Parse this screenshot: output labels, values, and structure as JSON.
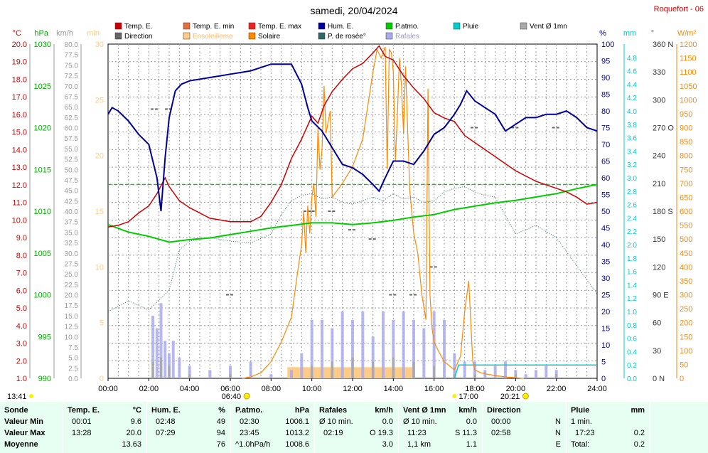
{
  "title": "samedi, 20/04/2024",
  "station": "Roquefort - 06",
  "legend": [
    {
      "label": "Temp. E.",
      "color": "#cc0000"
    },
    {
      "label": "Temp. E. min",
      "color": "#e07040"
    },
    {
      "label": "Temp. E. max",
      "color": "#ee2020"
    },
    {
      "label": "Hum. E.",
      "color": "#000099"
    },
    {
      "label": "P.atmo.",
      "color": "#00cc00"
    },
    {
      "label": "Pluie",
      "color": "#00cccc"
    },
    {
      "label": "Vent Ø 1mn",
      "color": "#aaaaaa"
    },
    {
      "label": "Direction",
      "color": "#666666"
    },
    {
      "label": "Ensoleilleme",
      "color": "#ffcc88"
    },
    {
      "label": "Solaire",
      "color": "#ff8800"
    },
    {
      "label": "P. de rosée°",
      "color": "#336666"
    },
    {
      "label": "Rafales",
      "color": "#aaaaee"
    }
  ],
  "axes": {
    "temp": {
      "unit": "°C",
      "ticks": [
        "20.0",
        "19.0",
        "18.0",
        "17.0",
        "16.0",
        "15.0",
        "14.0",
        "13.0",
        "12.0",
        "11.0",
        "10.0",
        "9.0",
        "8.0",
        "7.0",
        "6.0",
        "5.0",
        "4.0",
        "3.0",
        "2.0",
        "1.0"
      ],
      "color": "#cc0000"
    },
    "press": {
      "unit": "hPa",
      "ticks": [
        "1030",
        "1025",
        "1020",
        "1015",
        "1010",
        "1005",
        "1000",
        "995",
        "990"
      ],
      "color": "#00aa00"
    },
    "wind": {
      "unit": "km/h",
      "ticks": [
        "80.0",
        "77.5",
        "75.0",
        "72.5",
        "70.0",
        "67.5",
        "65.0",
        "62.5",
        "60.0",
        "57.5",
        "55.0",
        "52.5",
        "50.0",
        "47.5",
        "45.0",
        "42.5",
        "40.0",
        "37.5",
        "35.0",
        "32.5",
        "30.0",
        "27.5",
        "25.0",
        "22.5",
        "20.0",
        "17.5",
        "15.0",
        "12.5",
        "10.0",
        "7.5",
        "5.0",
        "2.5",
        "0.0"
      ],
      "color": "#999999"
    },
    "sun": {
      "unit": "min",
      "ticks": [
        "30",
        "25",
        "20",
        "15",
        "10",
        "5",
        "0"
      ],
      "color": "#ffcc88"
    },
    "hum": {
      "unit": "%",
      "ticks": [
        "100",
        "95",
        "90",
        "85",
        "80",
        "75",
        "70",
        "65",
        "60",
        "55",
        "50",
        "45",
        "40",
        "35",
        "30",
        "25",
        "20",
        "15",
        "10",
        "5",
        "0"
      ],
      "color": "#000099"
    },
    "rain": {
      "unit": "mm",
      "ticks": [
        "4.8",
        "4.6",
        "4.4",
        "4.2",
        "4.0",
        "3.8",
        "3.6",
        "3.4",
        "3.2",
        "3.0",
        "2.8",
        "2.6",
        "2.4",
        "2.2",
        "2.0",
        "1.8",
        "1.6",
        "1.4",
        "1.2",
        "1.0",
        "0.8",
        "0.6",
        "0.4",
        "0.2",
        "0.0"
      ],
      "color": "#00cccc"
    },
    "dir": {
      "unit": "°",
      "ticks": [
        "360 N",
        "330",
        "300",
        "270 O",
        "240",
        "210",
        "180 S",
        "150",
        "120",
        "90 E",
        "60",
        "30",
        "0 N"
      ],
      "color": "#666666"
    },
    "solar": {
      "unit": "W/m²",
      "ticks": [
        "1200",
        "1150",
        "1100",
        "1050",
        "1000",
        "950",
        "900",
        "850",
        "800",
        "750",
        "700",
        "650",
        "600",
        "550",
        "500",
        "450",
        "400",
        "350",
        "300",
        "250",
        "200",
        "150",
        "100",
        "50",
        "0"
      ],
      "color": "#ff8800"
    }
  },
  "x_ticks": [
    "00:00",
    "02:00",
    "04:00",
    "06:00",
    "08:00",
    "10:00",
    "12:00",
    "14:00",
    "16:00",
    "18:00",
    "20:00",
    "22:00",
    "24:00"
  ],
  "sun_events": {
    "moon_rise": "13:41",
    "sunrise": "06:40",
    "sunset": "20:21",
    "moon_set": "17:00"
  },
  "chart_data": {
    "type": "line",
    "x_unit": "hour",
    "xlim": [
      0,
      24
    ],
    "series": [
      {
        "name": "Temp. E.",
        "axis": "temp",
        "ylim": [
          1,
          20
        ],
        "x": [
          0,
          0.5,
          1,
          1.5,
          2,
          2.4,
          2.8,
          3,
          3.5,
          4,
          5,
          6,
          7,
          7.5,
          8,
          8.5,
          9,
          9.5,
          10,
          10.3,
          10.6,
          11,
          11.5,
          12,
          12.5,
          13,
          13.3,
          13.6,
          14,
          14.5,
          15,
          15.5,
          16,
          16.5,
          17,
          17.5,
          18,
          18.5,
          19,
          19.5,
          20,
          20.5,
          21,
          21.5,
          22,
          22.5,
          23,
          23.5,
          24
        ],
        "y": [
          9.6,
          9.7,
          9.9,
          10.4,
          10.8,
          11.5,
          12.4,
          11.9,
          11.1,
          10.7,
          10.1,
          9.9,
          9.9,
          10.2,
          11.0,
          12.0,
          13.5,
          14.6,
          15.9,
          15.5,
          16.5,
          17.3,
          18.0,
          18.6,
          18.9,
          19.5,
          19.9,
          19.3,
          19.1,
          18.2,
          17.5,
          16.9,
          16.1,
          15.8,
          15.6,
          14.8,
          14.4,
          14.0,
          13.6,
          13.2,
          12.8,
          12.5,
          12.2,
          12.0,
          11.8,
          11.6,
          11.3,
          10.9,
          11.0
        ]
      },
      {
        "name": "Hum. E.",
        "axis": "hum",
        "ylim": [
          0,
          100
        ],
        "x": [
          0,
          0.2,
          0.5,
          1,
          1.5,
          2,
          2.4,
          2.6,
          2.8,
          3,
          3.3,
          3.6,
          4,
          5,
          6,
          7,
          7.5,
          8,
          8.5,
          9,
          9.5,
          9.8,
          10,
          10.5,
          11,
          11.5,
          12,
          12.5,
          13,
          13.3,
          13.6,
          14,
          14.5,
          15,
          15.5,
          16,
          16.5,
          17,
          17.3,
          17.6,
          18,
          18.5,
          19,
          19.5,
          20,
          20.5,
          21,
          21.5,
          22,
          22.5,
          23,
          23.5,
          24
        ],
        "y": [
          79,
          81,
          80,
          77,
          73,
          70,
          60,
          50,
          66,
          78,
          86,
          88,
          89,
          90,
          91,
          92,
          93,
          94,
          94,
          94,
          88,
          81,
          77,
          74,
          69,
          64,
          63,
          61,
          58,
          56,
          60,
          65,
          65,
          64,
          68,
          73,
          75,
          79,
          82,
          86,
          83,
          81,
          79,
          74,
          76,
          78,
          78,
          79,
          79,
          80,
          78,
          75,
          74
        ]
      },
      {
        "name": "P.atmo.",
        "axis": "press",
        "ylim": [
          990,
          1030
        ],
        "x": [
          0,
          1,
          2,
          3,
          4,
          5,
          6,
          7,
          8,
          9,
          10,
          11,
          12,
          13,
          14,
          15,
          16,
          17,
          18,
          19,
          20,
          21,
          22,
          23,
          24
        ],
        "y": [
          1008.4,
          1007.5,
          1007.0,
          1006.3,
          1006.6,
          1006.8,
          1007.2,
          1007.6,
          1008.0,
          1008.3,
          1008.6,
          1008.6,
          1008.4,
          1008.6,
          1008.9,
          1009.3,
          1009.6,
          1010.2,
          1010.6,
          1011.0,
          1011.3,
          1011.7,
          1012.1,
          1012.7,
          1013.2
        ]
      },
      {
        "name": "P. de rosée°",
        "axis": "temp",
        "ylim": [
          1,
          20
        ],
        "x": [
          0,
          1,
          2,
          3,
          3.5,
          4,
          5,
          6,
          7,
          8,
          8.5,
          9,
          9.5,
          10,
          10.5,
          11,
          11.5,
          12,
          12.5,
          13,
          13.5,
          14,
          14.5,
          15,
          15.5,
          16,
          16.5,
          17,
          17.5,
          18,
          18.5,
          19,
          20,
          21,
          22,
          23,
          24
        ],
        "y": [
          4.8,
          5.4,
          4.9,
          6.0,
          8.3,
          8.8,
          9.0,
          8.8,
          8.7,
          9.2,
          10.3,
          11.1,
          11.4,
          11.5,
          11.2,
          11.3,
          11.0,
          10.9,
          11.1,
          11.3,
          11.1,
          11.5,
          11.2,
          11.3,
          11.0,
          11.1,
          11.6,
          11.8,
          11.9,
          11.6,
          11.4,
          11.3,
          9.2,
          9.7,
          9.0,
          7.4,
          5.8
        ]
      },
      {
        "name": "Solaire",
        "axis": "solar",
        "ylim": [
          0,
          1200
        ],
        "x": [
          6.6,
          7,
          7.5,
          8,
          8.5,
          9,
          9.3,
          9.5,
          9.6,
          9.7,
          9.8,
          9.9,
          10,
          10.1,
          10.2,
          10.3,
          10.4,
          10.5,
          10.6,
          10.7,
          10.8,
          10.9,
          11,
          11.5,
          12,
          12.5,
          13,
          13.2,
          13.4,
          13.6,
          13.7,
          13.8,
          13.9,
          14,
          14.1,
          14.2,
          14.3,
          14.4,
          14.5,
          14.6,
          14.8,
          15,
          15.2,
          15.4,
          15.6,
          15.7,
          15.8,
          15.9,
          16,
          16.2,
          16.5,
          17,
          17.3,
          17.5,
          17.7,
          17.8,
          17.9,
          18,
          18.3,
          18.6,
          19,
          19.5,
          20,
          20.4
        ],
        "y": [
          0,
          5,
          20,
          60,
          130,
          220,
          380,
          480,
          600,
          450,
          620,
          520,
          650,
          700,
          580,
          900,
          750,
          820,
          1050,
          880,
          920,
          960,
          650,
          700,
          760,
          860,
          1100,
          1180,
          1150,
          1190,
          750,
          1180,
          1170,
          1100,
          780,
          950,
          1150,
          1050,
          880,
          1120,
          680,
          520,
          450,
          300,
          210,
          1040,
          300,
          180,
          130,
          100,
          60,
          30,
          80,
          240,
          350,
          200,
          60,
          30,
          20,
          15,
          10,
          5,
          2,
          0
        ]
      },
      {
        "name": "Rafales",
        "axis": "wind",
        "ylim": [
          0,
          80
        ],
        "x": [
          2.2,
          2.4,
          2.6,
          2.8,
          3,
          3.2,
          3.5,
          4,
          5,
          6,
          7,
          8,
          9,
          9.5,
          10,
          10.5,
          11,
          11.5,
          12,
          12.5,
          13,
          13.5,
          14,
          14.5,
          15,
          15.5,
          16,
          16.5,
          17,
          17.5,
          18,
          18.5,
          19,
          19.5,
          20,
          20.5,
          21,
          21.5,
          22
        ],
        "y": [
          15,
          12,
          18,
          9,
          6,
          9,
          5,
          3,
          2,
          3,
          4,
          1,
          2,
          6,
          14,
          14,
          12,
          16,
          14,
          16,
          10,
          16,
          14,
          16,
          14,
          12,
          16,
          14,
          6,
          4,
          4,
          2,
          3,
          4,
          2,
          1,
          2,
          3,
          2
        ]
      },
      {
        "name": "Vent Ø 1mn",
        "axis": "wind",
        "ylim": [
          0,
          80
        ],
        "x": [
          2.2,
          2.6,
          3,
          4,
          6,
          8,
          10,
          11,
          12,
          13,
          14,
          15,
          16,
          17,
          18,
          20,
          22
        ],
        "y": [
          4,
          5,
          3,
          1,
          1,
          0,
          3,
          4,
          5,
          4,
          5,
          4,
          3,
          1,
          1,
          1,
          1
        ]
      },
      {
        "name": "Direction",
        "axis": "dir",
        "ylim": [
          0,
          360
        ],
        "x": [
          2.3,
          3,
          6,
          9.8,
          10,
          11,
          12,
          13,
          14,
          15,
          16,
          18,
          20,
          22
        ],
        "y": [
          290,
          290,
          90,
          180,
          180,
          180,
          160,
          150,
          90,
          90,
          120,
          270,
          270,
          270
        ]
      },
      {
        "name": "Pluie",
        "axis": "rain",
        "ylim": [
          0,
          5
        ],
        "x": [
          17,
          17.2,
          17.5,
          24
        ],
        "y": [
          0,
          0.2,
          0.2,
          0.2
        ]
      },
      {
        "name": "Ensoleilleme",
        "axis": "sun",
        "ylim": [
          0,
          30
        ],
        "x": [
          8.8,
          9,
          9.5,
          10,
          10.5,
          11,
          11.5,
          12,
          12.5,
          13,
          13.5,
          14,
          14.5
        ],
        "y": [
          1,
          1,
          1,
          1,
          1,
          1,
          1,
          1,
          1,
          1,
          1,
          1,
          1
        ]
      }
    ]
  },
  "table": {
    "row_labels": [
      "Sonde",
      "Valeur Min",
      "Valeur Max",
      "Moyenne"
    ],
    "temp": {
      "header": "Temp. E.",
      "unit": "°C",
      "min_time": "00:01",
      "min": "9.6",
      "max_time": "13:28",
      "max": "20.0",
      "mean": "13.63"
    },
    "hum": {
      "header": "Hum. E.",
      "unit": "%",
      "min_time": "02:48",
      "min": "49",
      "max_time": "07:29",
      "max": "94",
      "mean": "76"
    },
    "press": {
      "header": "P.atmo.",
      "unit": "hPa",
      "min_time": "02:30",
      "min": "1006.1",
      "max_time": "23:45",
      "max": "1013.2",
      "mean_label": "^1.0hPa/h",
      "mean": "1008.6"
    },
    "gust": {
      "header": "Rafales",
      "unit": "km/h",
      "min_label": "Ø 10 min.",
      "min": "0.0",
      "max_time": "02:19",
      "max": "O 19.3",
      "mean": "3.0"
    },
    "wind": {
      "header": "Vent Ø 1mn",
      "unit": "km/h",
      "min_label": "Ø 10 min.",
      "min": "0.0",
      "max_time": "11:23",
      "max": "S 11.3",
      "mean_label": "1,1 km",
      "mean": "1.1"
    },
    "dir": {
      "header": "Direction",
      "min_time": "00:00",
      "min": "N",
      "max_time": "02:58",
      "max": "N",
      "mean": "E"
    },
    "rain": {
      "header": "Pluie",
      "unit": "mm",
      "min_label": "1 min.",
      "max_time": "17:23",
      "max": "0.2",
      "mean_label": "Total:",
      "mean": "0.2"
    }
  }
}
